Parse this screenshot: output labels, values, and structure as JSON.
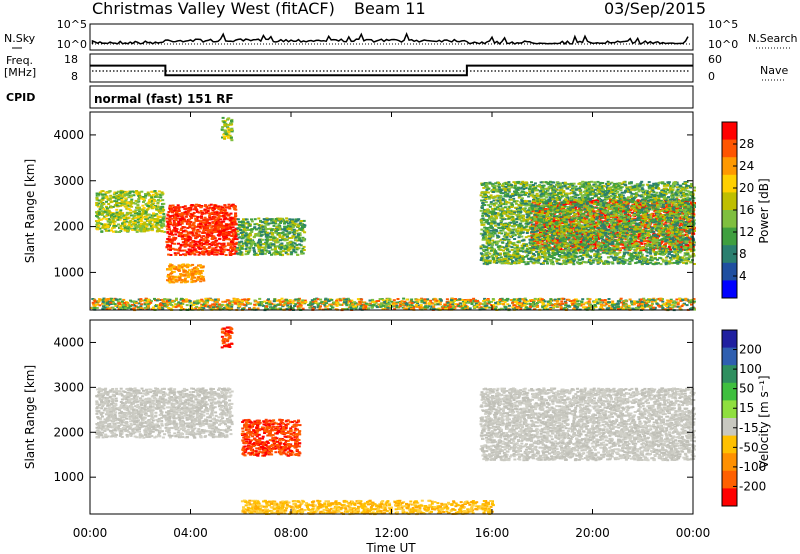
{
  "header": {
    "radar": "Christmas Valley West (fitACF)",
    "beam": "Beam 11",
    "date": "03/Sep/2015"
  },
  "strip_noise": {
    "left_label": "N.Sky",
    "right_label": "N.Search",
    "left_ticks": [
      "10^5",
      "10^0"
    ],
    "right_ticks": [
      "10^5",
      "10^0"
    ]
  },
  "strip_freq": {
    "left_label_1": "Freq.",
    "left_label_2": "[MHz]",
    "right_label": "Nave",
    "left_ticks": [
      "18",
      "8"
    ],
    "right_ticks": [
      "60",
      "0"
    ]
  },
  "strip_cpid": {
    "label": "CPID",
    "mode_text": "normal (fast) 151 RF"
  },
  "axes": {
    "xlabel": "Time UT",
    "x_ticks": [
      "00:00",
      "04:00",
      "08:00",
      "12:00",
      "16:00",
      "20:00",
      "00:00"
    ],
    "ylabel": "Slant Range [km]",
    "y_ticks": [
      "4000",
      "3000",
      "2000",
      "1000"
    ]
  },
  "colorbars": {
    "power": {
      "label": "Power [dB]",
      "ticks": [
        "28",
        "24",
        "20",
        "16",
        "12",
        "8",
        "4"
      ],
      "colors": [
        "#ff0000",
        "#ff5500",
        "#ff9900",
        "#ffd000",
        "#bfbf00",
        "#7fbf3f",
        "#3f9f3f",
        "#2a7f6f",
        "#1f4fa0",
        "#0000ff"
      ]
    },
    "velocity": {
      "label": "Velocity [m s⁻¹]",
      "ticks": [
        "200",
        "100",
        "50",
        "15",
        "-15",
        "-50",
        "-100",
        "-200"
      ],
      "colors": [
        "#2020a0",
        "#2f5fb0",
        "#2f8f5f",
        "#3fbf3f",
        "#8fdf3f",
        "#c8c8c0",
        "#ffc000",
        "#ff9000",
        "#ff6000",
        "#ff0000"
      ]
    }
  },
  "chart_data": {
    "type": "heatmap",
    "x_range_hours": [
      0,
      24
    ],
    "y_range_km": [
      180,
      4500
    ],
    "frequency_mhz": [
      {
        "start": "00:00",
        "end": "03:00",
        "value": 14
      },
      {
        "start": "03:00",
        "end": "15:00",
        "value": 10
      },
      {
        "start": "15:00",
        "end": "24:00",
        "value": 14
      }
    ],
    "power_regions": [
      {
        "t0": 0.2,
        "t1": 2.9,
        "r0": 1900,
        "r1": 2800,
        "level": "green-yellow"
      },
      {
        "t0": 3.0,
        "t1": 5.8,
        "r0": 1400,
        "r1": 2500,
        "level": "red"
      },
      {
        "t0": 3.0,
        "t1": 4.5,
        "r0": 800,
        "r1": 1200,
        "level": "orange"
      },
      {
        "t0": 5.8,
        "t1": 8.5,
        "r0": 1400,
        "r1": 2200,
        "level": "green"
      },
      {
        "t0": 5.2,
        "t1": 5.6,
        "r0": 3900,
        "r1": 4400,
        "level": "green-yellow"
      },
      {
        "t0": 17.5,
        "t1": 24.0,
        "r0": 1500,
        "r1": 2600,
        "level": "red"
      },
      {
        "t0": 15.5,
        "t1": 24.0,
        "r0": 1200,
        "r1": 3000,
        "level": "green"
      },
      {
        "t0": 0.0,
        "t1": 24.0,
        "r0": 200,
        "r1": 450,
        "level": "mixed"
      }
    ],
    "velocity_regions": [
      {
        "t0": 0.2,
        "t1": 5.6,
        "r0": 1900,
        "r1": 3000,
        "level": "-15..15"
      },
      {
        "t0": 6.0,
        "t1": 8.3,
        "r0": 1500,
        "r1": 2300,
        "level": "-100..-200"
      },
      {
        "t0": 5.2,
        "t1": 5.6,
        "r0": 3900,
        "r1": 4400,
        "level": "-100..-200"
      },
      {
        "t0": 15.5,
        "t1": 24.0,
        "r0": 1400,
        "r1": 3000,
        "level": "-15..15"
      },
      {
        "t0": 6.0,
        "t1": 16.0,
        "r0": 200,
        "r1": 500,
        "level": "-15..-50"
      }
    ]
  }
}
